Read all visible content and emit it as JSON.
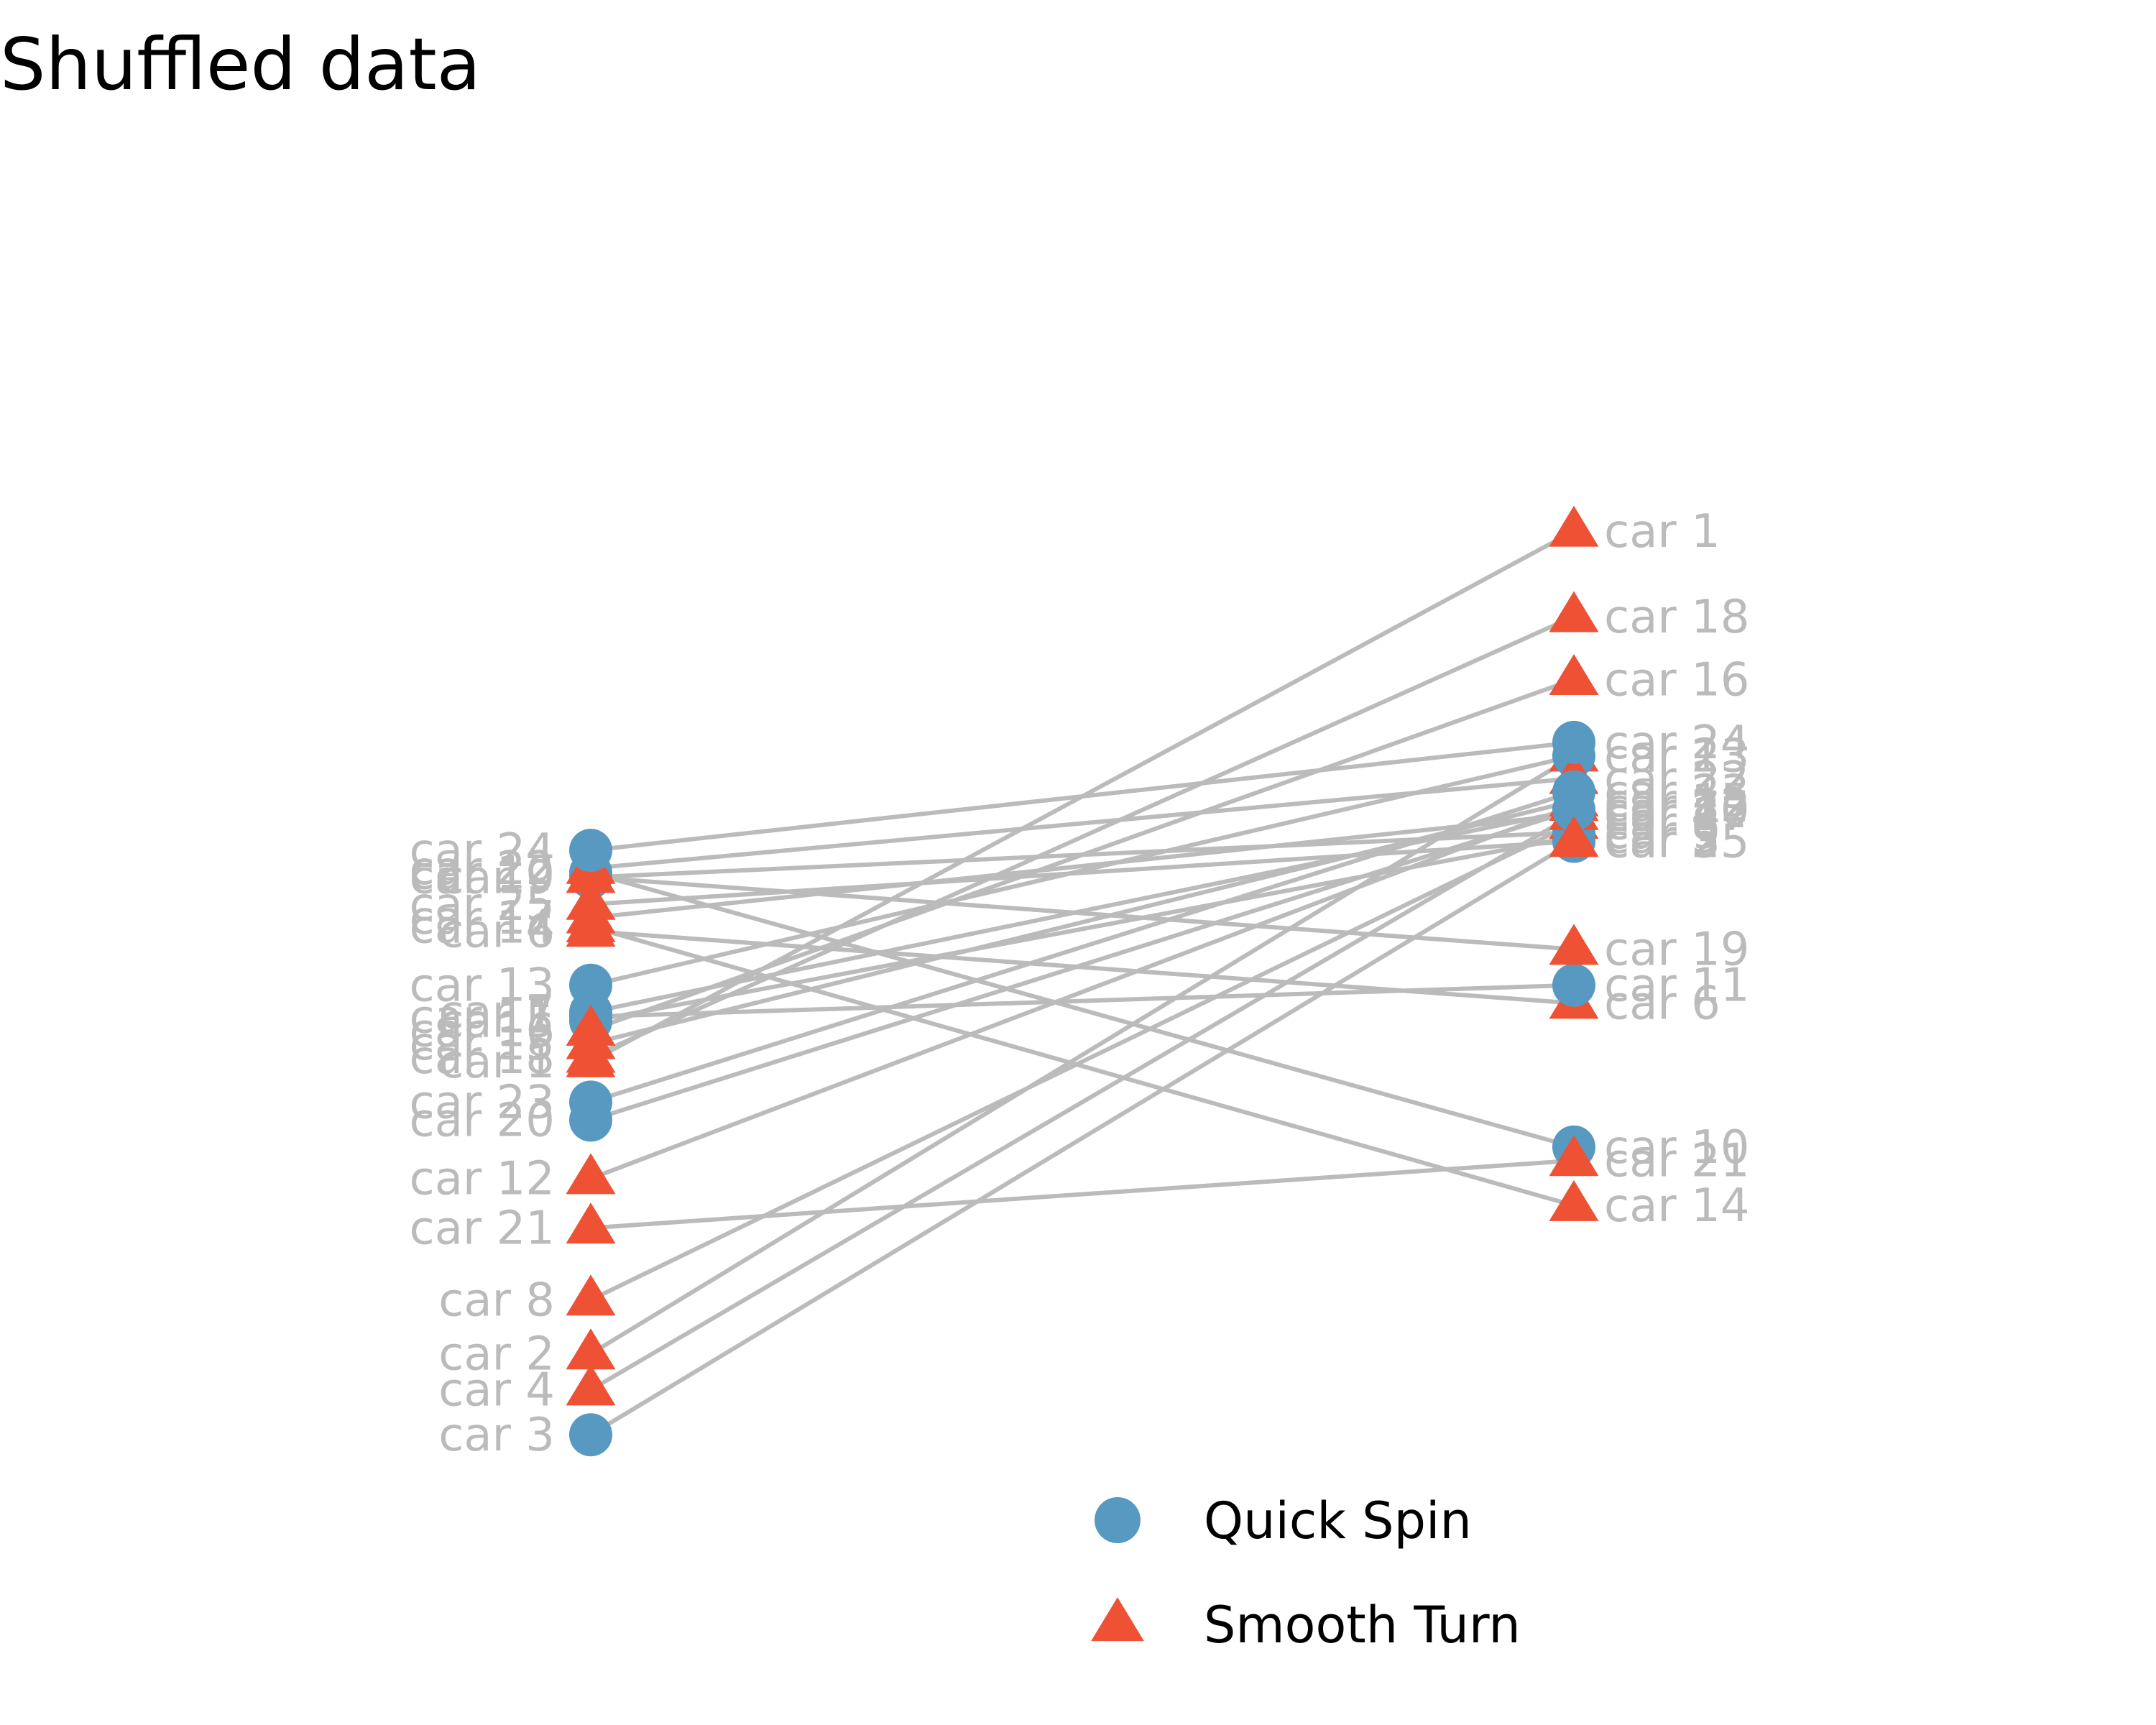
{
  "chart_data": {
    "type": "slopegraph",
    "title": "Shuffled data",
    "colors": {
      "line": "#bbbbbb",
      "label": "#bbbbbb",
      "Quick Spin": "#5799c0",
      "Smooth Turn": "#ef5135"
    },
    "legend": {
      "placement": "bottom-center",
      "entries": [
        {
          "name": "Quick Spin",
          "marker": "circle"
        },
        {
          "name": "Smooth Turn",
          "marker": "triangle"
        }
      ]
    },
    "series": [
      {
        "name": "car 1",
        "group": "Smooth Turn",
        "left": 6.2,
        "right": 18.0
      },
      {
        "name": "car 2",
        "group": "Smooth Turn",
        "left": -0.3,
        "right": 13.0
      },
      {
        "name": "car 3",
        "group": "Quick Spin",
        "left": -2.1,
        "right": 11.1
      },
      {
        "name": "car 4",
        "group": "Smooth Turn",
        "left": -1.1,
        "right": 11.7
      },
      {
        "name": "car 5",
        "group": "Quick Spin",
        "left": 7.1,
        "right": 11.2
      },
      {
        "name": "car 6",
        "group": "Smooth Turn",
        "left": 9.1,
        "right": 7.5
      },
      {
        "name": "car 7",
        "group": "Quick Spin",
        "left": 7.3,
        "right": 11.8
      },
      {
        "name": "car 8",
        "group": "Smooth Turn",
        "left": 0.9,
        "right": 11.5
      },
      {
        "name": "car 9",
        "group": "Quick Spin",
        "left": 10.3,
        "right": 11.3
      },
      {
        "name": "car 10",
        "group": "Quick Spin",
        "left": 10.4,
        "right": 4.3
      },
      {
        "name": "car 11",
        "group": "Quick Spin",
        "left": 7.2,
        "right": 7.9
      },
      {
        "name": "car 12",
        "group": "Smooth Turn",
        "left": 3.6,
        "right": 11.9
      },
      {
        "name": "car 13",
        "group": "Quick Spin",
        "left": 7.9,
        "right": 13.0
      },
      {
        "name": "car 14",
        "group": "Smooth Turn",
        "left": 9.2,
        "right": 3.0
      },
      {
        "name": "car 15",
        "group": "Smooth Turn",
        "left": 6.6,
        "right": 12.0
      },
      {
        "name": "car 16",
        "group": "Smooth Turn",
        "left": 6.9,
        "right": 14.7
      },
      {
        "name": "car 17",
        "group": "Smooth Turn",
        "left": 9.4,
        "right": 11.7
      },
      {
        "name": "car 18",
        "group": "Smooth Turn",
        "left": 6.3,
        "right": 16.1
      },
      {
        "name": "car 19",
        "group": "Smooth Turn",
        "left": 10.3,
        "right": 8.7
      },
      {
        "name": "car 20",
        "group": "Quick Spin",
        "left": 4.9,
        "right": 11.8
      },
      {
        "name": "car 21",
        "group": "Smooth Turn",
        "left": 2.5,
        "right": 4.0
      },
      {
        "name": "car 22",
        "group": "Smooth Turn",
        "left": 10.5,
        "right": 12.5
      },
      {
        "name": "car 23",
        "group": "Quick Spin",
        "left": 5.3,
        "right": 12.2
      },
      {
        "name": "car 24",
        "group": "Quick Spin",
        "left": 10.9,
        "right": 13.3
      },
      {
        "name": "car 25",
        "group": "Smooth Turn",
        "left": 9.7,
        "right": 11.1
      }
    ],
    "ylim": [
      -2.8,
      21.5
    ],
    "grid": false,
    "xlabel": "",
    "ylabel": ""
  }
}
